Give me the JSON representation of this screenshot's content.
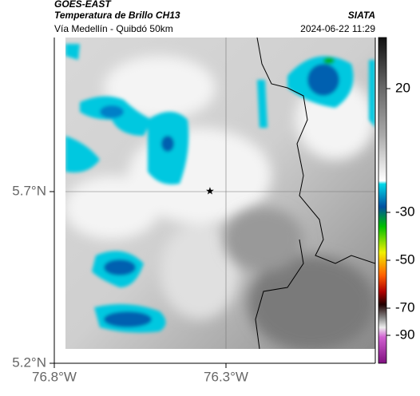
{
  "header": {
    "source": "GOES-EAST",
    "product": "Temperatura de Brillo CH13",
    "region": "Vía Medellín - Quibdó 50km",
    "agency": "SIATA",
    "timestamp": "2024-06-22 11:29"
  },
  "map": {
    "lat_labels": [
      "5.7°N",
      "5.2°N"
    ],
    "lon_labels": [
      "76.8°W",
      "76.3°W"
    ]
  },
  "colorbar": {
    "labels": [
      "20",
      "-30",
      "-50",
      "-70",
      "-90"
    ]
  }
}
